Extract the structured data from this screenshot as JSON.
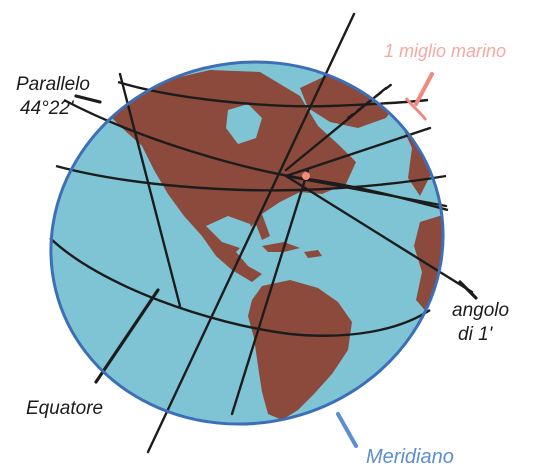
{
  "labels": {
    "parallel_name": "Parallelo",
    "parallel_value": "44°22'",
    "nautical_mile": "1 miglio marino",
    "angle_word": "angolo",
    "angle_value": "di 1'",
    "equator": "Equatore",
    "meridian": "Meridiano"
  },
  "colors": {
    "ocean": "#7fc4d4",
    "land": "#8b4a3c",
    "rim": "#3d6fb8",
    "lines": "#1c1c1c",
    "nautical_mile_marker": "#f08a7e",
    "meridian_label": "#5b8fd0",
    "background": "#ffffff"
  }
}
